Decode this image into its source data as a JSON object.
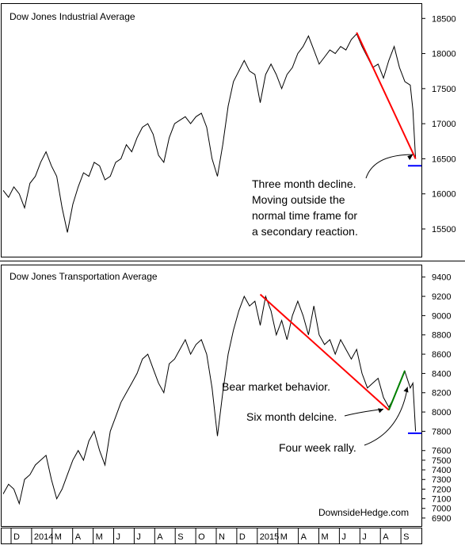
{
  "chart_data": [
    {
      "type": "line",
      "title": "Dow Jones Industrial Average",
      "ylim": [
        15150,
        18650
      ],
      "y_ticks": [
        15500,
        16000,
        16500,
        17000,
        17500,
        18000,
        18500
      ],
      "series": [
        {
          "values": [
            [
              0,
              16050
            ],
            [
              2,
              15950
            ],
            [
              4,
              16100
            ],
            [
              6,
              16000
            ],
            [
              8,
              15800
            ],
            [
              10,
              16150
            ],
            [
              12,
              16250
            ],
            [
              14,
              16450
            ],
            [
              16,
              16600
            ],
            [
              18,
              16400
            ],
            [
              20,
              16250
            ],
            [
              22,
              15800
            ],
            [
              24,
              15450
            ],
            [
              26,
              15850
            ],
            [
              28,
              16100
            ],
            [
              30,
              16300
            ],
            [
              32,
              16250
            ],
            [
              34,
              16450
            ],
            [
              36,
              16400
            ],
            [
              38,
              16200
            ],
            [
              40,
              16250
            ],
            [
              42,
              16450
            ],
            [
              44,
              16500
            ],
            [
              46,
              16700
            ],
            [
              48,
              16600
            ],
            [
              50,
              16800
            ],
            [
              52,
              16950
            ],
            [
              54,
              17000
            ],
            [
              56,
              16850
            ],
            [
              58,
              16550
            ],
            [
              60,
              16450
            ],
            [
              62,
              16800
            ],
            [
              64,
              17000
            ],
            [
              66,
              17050
            ],
            [
              68,
              17100
            ],
            [
              70,
              17000
            ],
            [
              72,
              17100
            ],
            [
              74,
              17150
            ],
            [
              76,
              16950
            ],
            [
              78,
              16500
            ],
            [
              80,
              16250
            ],
            [
              82,
              16700
            ],
            [
              84,
              17250
            ],
            [
              86,
              17600
            ],
            [
              88,
              17750
            ],
            [
              90,
              17900
            ],
            [
              92,
              17750
            ],
            [
              94,
              17700
            ],
            [
              96,
              17300
            ],
            [
              98,
              17700
            ],
            [
              100,
              17850
            ],
            [
              102,
              17700
            ],
            [
              104,
              17500
            ],
            [
              106,
              17700
            ],
            [
              108,
              17800
            ],
            [
              110,
              18000
            ],
            [
              112,
              18100
            ],
            [
              114,
              18250
            ],
            [
              116,
              18050
            ],
            [
              118,
              17850
            ],
            [
              120,
              17950
            ],
            [
              122,
              18050
            ],
            [
              124,
              18000
            ],
            [
              126,
              18100
            ],
            [
              128,
              18050
            ],
            [
              130,
              18200
            ],
            [
              132,
              18280
            ],
            [
              134,
              18100
            ],
            [
              136,
              17950
            ],
            [
              138,
              17800
            ],
            [
              140,
              17850
            ],
            [
              142,
              17650
            ],
            [
              144,
              17900
            ],
            [
              146,
              18100
            ],
            [
              148,
              17800
            ],
            [
              150,
              17600
            ],
            [
              152,
              17550
            ],
            [
              153,
              17200
            ],
            [
              154,
              16500
            ]
          ]
        }
      ],
      "trendline": {
        "from": [
          132,
          18300
        ],
        "to": [
          154,
          16500
        ],
        "color": "#ff0000"
      },
      "level_marker": {
        "value": 16400,
        "color": "#0000ff"
      },
      "annotation": {
        "lines": [
          "Three month  decline.",
          "Moving outside the",
          "normal time frame for",
          "a secondary reaction."
        ],
        "arrow_to": [
          153,
          16560
        ]
      }
    },
    {
      "type": "line",
      "title": "Dow Jones Transportation Average",
      "ylim": [
        6850,
        9480
      ],
      "y_ticks": [
        6900,
        7000,
        7100,
        7200,
        7300,
        7400,
        7500,
        7600,
        7800,
        8000,
        8200,
        8400,
        8600,
        8800,
        9000,
        9200,
        9400
      ],
      "series": [
        {
          "values": [
            [
              0,
              7150
            ],
            [
              2,
              7250
            ],
            [
              4,
              7200
            ],
            [
              6,
              7050
            ],
            [
              8,
              7300
            ],
            [
              10,
              7350
            ],
            [
              12,
              7450
            ],
            [
              14,
              7500
            ],
            [
              16,
              7550
            ],
            [
              18,
              7300
            ],
            [
              20,
              7100
            ],
            [
              22,
              7200
            ],
            [
              24,
              7350
            ],
            [
              26,
              7500
            ],
            [
              28,
              7600
            ],
            [
              30,
              7500
            ],
            [
              32,
              7700
            ],
            [
              34,
              7800
            ],
            [
              36,
              7600
            ],
            [
              38,
              7450
            ],
            [
              40,
              7800
            ],
            [
              42,
              7950
            ],
            [
              44,
              8100
            ],
            [
              46,
              8200
            ],
            [
              48,
              8300
            ],
            [
              50,
              8400
            ],
            [
              52,
              8550
            ],
            [
              54,
              8600
            ],
            [
              56,
              8450
            ],
            [
              58,
              8300
            ],
            [
              60,
              8200
            ],
            [
              62,
              8500
            ],
            [
              64,
              8550
            ],
            [
              66,
              8650
            ],
            [
              68,
              8750
            ],
            [
              70,
              8600
            ],
            [
              72,
              8700
            ],
            [
              74,
              8750
            ],
            [
              76,
              8600
            ],
            [
              78,
              8250
            ],
            [
              80,
              7750
            ],
            [
              82,
              8200
            ],
            [
              84,
              8600
            ],
            [
              86,
              8850
            ],
            [
              88,
              9050
            ],
            [
              90,
              9200
            ],
            [
              92,
              9100
            ],
            [
              94,
              9150
            ],
            [
              96,
              8900
            ],
            [
              98,
              9200
            ],
            [
              100,
              9050
            ],
            [
              102,
              8800
            ],
            [
              104,
              8950
            ],
            [
              106,
              8750
            ],
            [
              108,
              9000
            ],
            [
              110,
              9150
            ],
            [
              112,
              9000
            ],
            [
              114,
              8800
            ],
            [
              116,
              9100
            ],
            [
              118,
              8800
            ],
            [
              120,
              8700
            ],
            [
              122,
              8750
            ],
            [
              124,
              8600
            ],
            [
              126,
              8750
            ],
            [
              128,
              8650
            ],
            [
              130,
              8550
            ],
            [
              132,
              8650
            ],
            [
              134,
              8400
            ],
            [
              136,
              8250
            ],
            [
              138,
              8300
            ],
            [
              140,
              8350
            ],
            [
              142,
              8150
            ],
            [
              144,
              8050
            ],
            [
              146,
              8150
            ],
            [
              148,
              8300
            ],
            [
              150,
              8420
            ],
            [
              152,
              8250
            ],
            [
              153,
              8300
            ],
            [
              154,
              7800
            ]
          ]
        }
      ],
      "trendline": {
        "from": [
          96,
          9220
        ],
        "to": [
          144,
          8020
        ],
        "color": "#ff0000"
      },
      "trendline2": {
        "from": [
          144,
          8020
        ],
        "to": [
          150,
          8430
        ],
        "color": "#008000"
      },
      "level_marker": {
        "value": 7780,
        "color": "#0000ff"
      },
      "annotations": [
        {
          "text": "Bear market behavior.",
          "anchor": [
            84,
            8200
          ]
        },
        {
          "text": "Six month delcine.",
          "anchor": [
            90,
            7950
          ],
          "arrow_to": [
            142,
            8030
          ]
        },
        {
          "text": "Four week rally.",
          "anchor": [
            105,
            7680
          ],
          "arrow_to": [
            151,
            8260
          ]
        }
      ],
      "watermark": "DownsideHedge.com"
    }
  ],
  "x_axis": {
    "labels": [
      "D",
      "2014",
      "M",
      "A",
      "M",
      "J",
      "J",
      "A",
      "S",
      "O",
      "N",
      "D",
      "2015",
      "M",
      "A",
      "M",
      "J",
      "J",
      "A",
      "S"
    ]
  },
  "colors": {
    "price_line": "#000000",
    "border": "#000000",
    "background": "#ffffff"
  }
}
